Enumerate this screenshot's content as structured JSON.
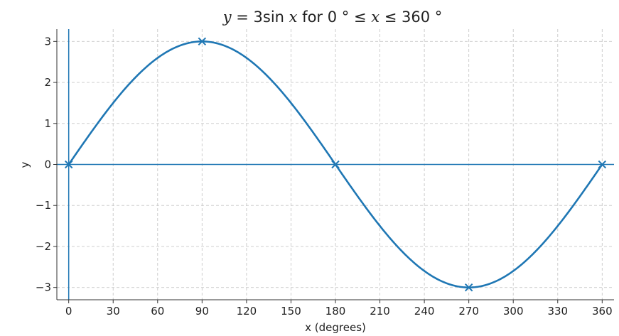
{
  "chart_data": {
    "type": "line",
    "title": {
      "lhs": "y",
      "eq": " = 3sin ",
      "var": "x",
      "mid": "  for  0 ° ≤ ",
      "var2": "x",
      "end": " ≤ 360 °"
    },
    "xlabel": "x (degrees)",
    "ylabel": "y",
    "xlim": [
      -8,
      368
    ],
    "ylim": [
      -3.3,
      3.3
    ],
    "x_ticks": [
      0,
      30,
      60,
      90,
      120,
      150,
      180,
      210,
      240,
      270,
      300,
      330,
      360
    ],
    "x_tick_labels": [
      "0",
      "30",
      "60",
      "90",
      "120",
      "150",
      "180",
      "210",
      "240",
      "270",
      "300",
      "330",
      "360"
    ],
    "y_ticks": [
      -3,
      -2,
      -1,
      0,
      1,
      2,
      3
    ],
    "y_tick_labels": [
      "−3",
      "−2",
      "−1",
      "0",
      "1",
      "2",
      "3"
    ],
    "grid": true,
    "series": [
      {
        "function": "3*sin(x)",
        "x_range": [
          0,
          360
        ],
        "color": "#1f77b4"
      }
    ],
    "markers": {
      "style": "x",
      "color": "#1f77b4",
      "points": [
        {
          "x": 0,
          "y": 0
        },
        {
          "x": 90,
          "y": 3
        },
        {
          "x": 180,
          "y": 0
        },
        {
          "x": 270,
          "y": -3
        },
        {
          "x": 360,
          "y": 0
        }
      ]
    },
    "reference_lines": {
      "horizontal_y": 0,
      "vertical_x": 0,
      "color": "#1f77b4"
    }
  }
}
